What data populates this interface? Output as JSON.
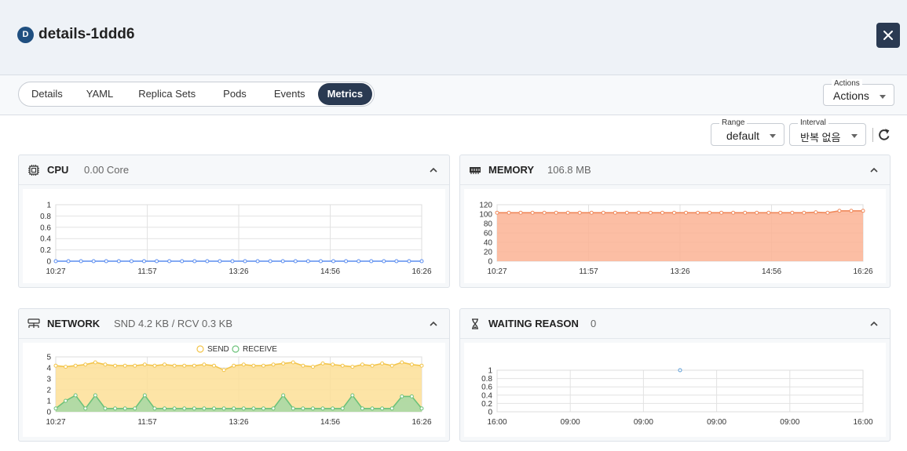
{
  "header": {
    "badge": "D",
    "title": "details-1ddd6"
  },
  "tabs": [
    {
      "label": "Details",
      "active": false
    },
    {
      "label": "YAML",
      "active": false
    },
    {
      "label": "Replica Sets",
      "active": false
    },
    {
      "label": "Pods",
      "active": false
    },
    {
      "label": "Events",
      "active": false
    },
    {
      "label": "Metrics",
      "active": true
    }
  ],
  "actions": {
    "label": "Actions",
    "value": "Actions"
  },
  "range": {
    "label": "Range",
    "value": "default"
  },
  "interval": {
    "label": "Interval",
    "value": "반복 없음"
  },
  "panels": {
    "cpu": {
      "title": "CPU",
      "subtitle": "0.00 Core"
    },
    "memory": {
      "title": "MEMORY",
      "subtitle": "106.8 MB"
    },
    "network": {
      "title": "NETWORK",
      "subtitle": "SND 4.2 KB / RCV 0.3 KB"
    },
    "waiting": {
      "title": "WAITING REASON",
      "subtitle": "0"
    }
  },
  "colors": {
    "cpu": "#5b8def",
    "memory": "#f08a5d",
    "memory_fill": "#fbb394",
    "send": "#f3c54b",
    "send_fill": "#fddf96",
    "receive": "#6cc27a",
    "receive_fill": "#a4d8a4",
    "waiting": "#5b9bd5"
  },
  "chart_data": [
    {
      "id": "cpu",
      "type": "line",
      "x_ticks": [
        "10:27",
        "11:57",
        "13:26",
        "14:56",
        "16:26"
      ],
      "y_ticks": [
        "0",
        "0.2",
        "0.4",
        "0.6",
        "0.8",
        "1"
      ],
      "ylim": [
        0,
        1
      ],
      "series": [
        {
          "values": [
            0,
            0,
            0,
            0,
            0,
            0,
            0,
            0,
            0,
            0,
            0,
            0,
            0,
            0,
            0,
            0,
            0,
            0,
            0,
            0,
            0,
            0,
            0,
            0,
            0,
            0,
            0,
            0,
            0,
            0
          ]
        }
      ]
    },
    {
      "id": "memory",
      "type": "area",
      "x_ticks": [
        "10:27",
        "11:57",
        "13:26",
        "14:56",
        "16:26"
      ],
      "y_ticks": [
        "0",
        "20",
        "40",
        "60",
        "80",
        "100",
        "120"
      ],
      "ylim": [
        0,
        120
      ],
      "series": [
        {
          "values": [
            103,
            103,
            103,
            103,
            103,
            103,
            103,
            103,
            103,
            103,
            103,
            103,
            103,
            103,
            103,
            103,
            103,
            103,
            103,
            103,
            103,
            103,
            103,
            103,
            103,
            103,
            103,
            104,
            103,
            107,
            107,
            107
          ]
        }
      ]
    },
    {
      "id": "network",
      "type": "area",
      "x_ticks": [
        "10:27",
        "11:57",
        "13:26",
        "14:56",
        "16:26"
      ],
      "y_ticks": [
        "0",
        "1",
        "2",
        "3",
        "4",
        "5"
      ],
      "ylim": [
        0,
        5
      ],
      "legend": [
        "SEND",
        "RECEIVE"
      ],
      "series": [
        {
          "name": "SEND",
          "values": [
            4.2,
            4.1,
            4.2,
            4.3,
            4.5,
            4.3,
            4.2,
            4.2,
            4.2,
            4.3,
            4.2,
            4.3,
            4.2,
            4.2,
            4.2,
            4.3,
            4.2,
            3.8,
            4.2,
            4.3,
            4.2,
            4.2,
            4.3,
            4.4,
            4.5,
            4.2,
            4.1,
            4.4,
            4.3,
            4.2,
            4.1,
            4.3,
            4.2,
            4.4,
            4.2,
            4.5,
            4.3,
            4.2
          ]
        },
        {
          "name": "RECEIVE",
          "values": [
            0.3,
            1.0,
            1.5,
            0.3,
            1.5,
            0.3,
            0.3,
            0.3,
            0.3,
            1.5,
            0.3,
            0.3,
            0.3,
            0.3,
            0.3,
            0.3,
            0.3,
            0.3,
            0.3,
            0.3,
            0.3,
            0.3,
            0.3,
            1.5,
            0.3,
            0.3,
            0.3,
            0.3,
            0.3,
            0.3,
            1.5,
            0.3,
            0.3,
            0.3,
            0.3,
            1.4,
            1.4,
            0.3
          ]
        }
      ]
    },
    {
      "id": "waiting",
      "type": "scatter",
      "x_ticks": [
        "16:00",
        "09:00",
        "09:00",
        "09:00",
        "09:00",
        "16:00"
      ],
      "y_ticks": [
        "0",
        "0.2",
        "0.4",
        "0.6",
        "0.8",
        "1"
      ],
      "ylim": [
        0,
        1
      ],
      "points": [
        {
          "x": 0.5,
          "y": 1
        }
      ]
    }
  ]
}
